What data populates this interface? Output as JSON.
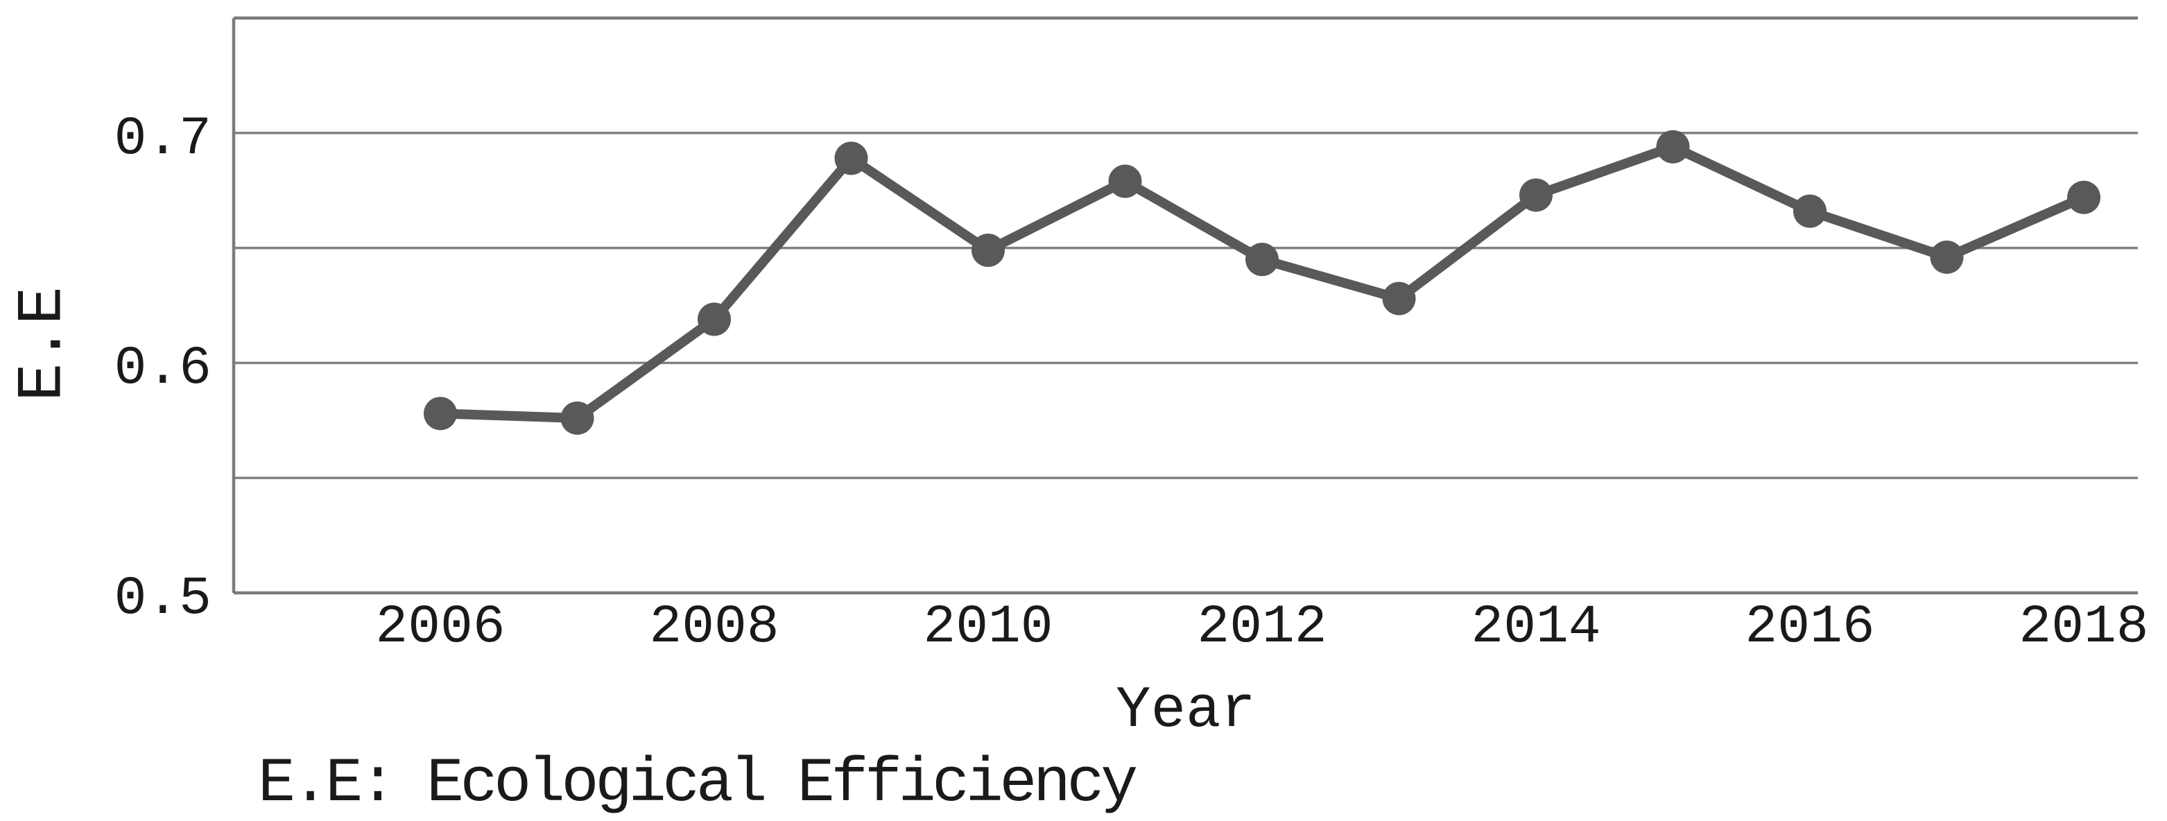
{
  "chart_data": {
    "type": "line",
    "x": [
      2006,
      2007,
      2008,
      2009,
      2010,
      2011,
      2012,
      2013,
      2014,
      2015,
      2016,
      2017,
      2018
    ],
    "series": [
      {
        "name": "E.E",
        "values": [
          0.578,
          0.576,
          0.619,
          0.689,
          0.649,
          0.679,
          0.645,
          0.628,
          0.673,
          0.694,
          0.666,
          0.646,
          0.672
        ],
        "marker": "circle"
      }
    ],
    "xlabel": "Year",
    "ylabel": "E.E",
    "caption": "E.E: Ecological Efficiency",
    "ylim": [
      0.5,
      0.75
    ],
    "ytick_labels": [
      {
        "label": "0.7",
        "value": 0.7
      },
      {
        "label": "0.6",
        "value": 0.6
      },
      {
        "label": "0.5",
        "value": 0.5
      }
    ],
    "xtick_labels": [
      {
        "label": "2006",
        "value": 2006
      },
      {
        "label": "2008",
        "value": 2008
      },
      {
        "label": "2010",
        "value": 2010
      },
      {
        "label": "2012",
        "value": 2012
      },
      {
        "label": "2014",
        "value": 2014
      },
      {
        "label": "2016",
        "value": 2016
      },
      {
        "label": "2018",
        "value": 2018
      }
    ],
    "gridline_values": [
      0.7,
      0.65,
      0.6,
      0.55
    ],
    "grid": "horizontal",
    "legend_position": "none",
    "colors": {
      "line": "#595959",
      "marker": "#595959",
      "grid": "#818181",
      "axis": "#7b7b7b",
      "text": "#1a1a1a",
      "background": "#ffffff"
    }
  }
}
